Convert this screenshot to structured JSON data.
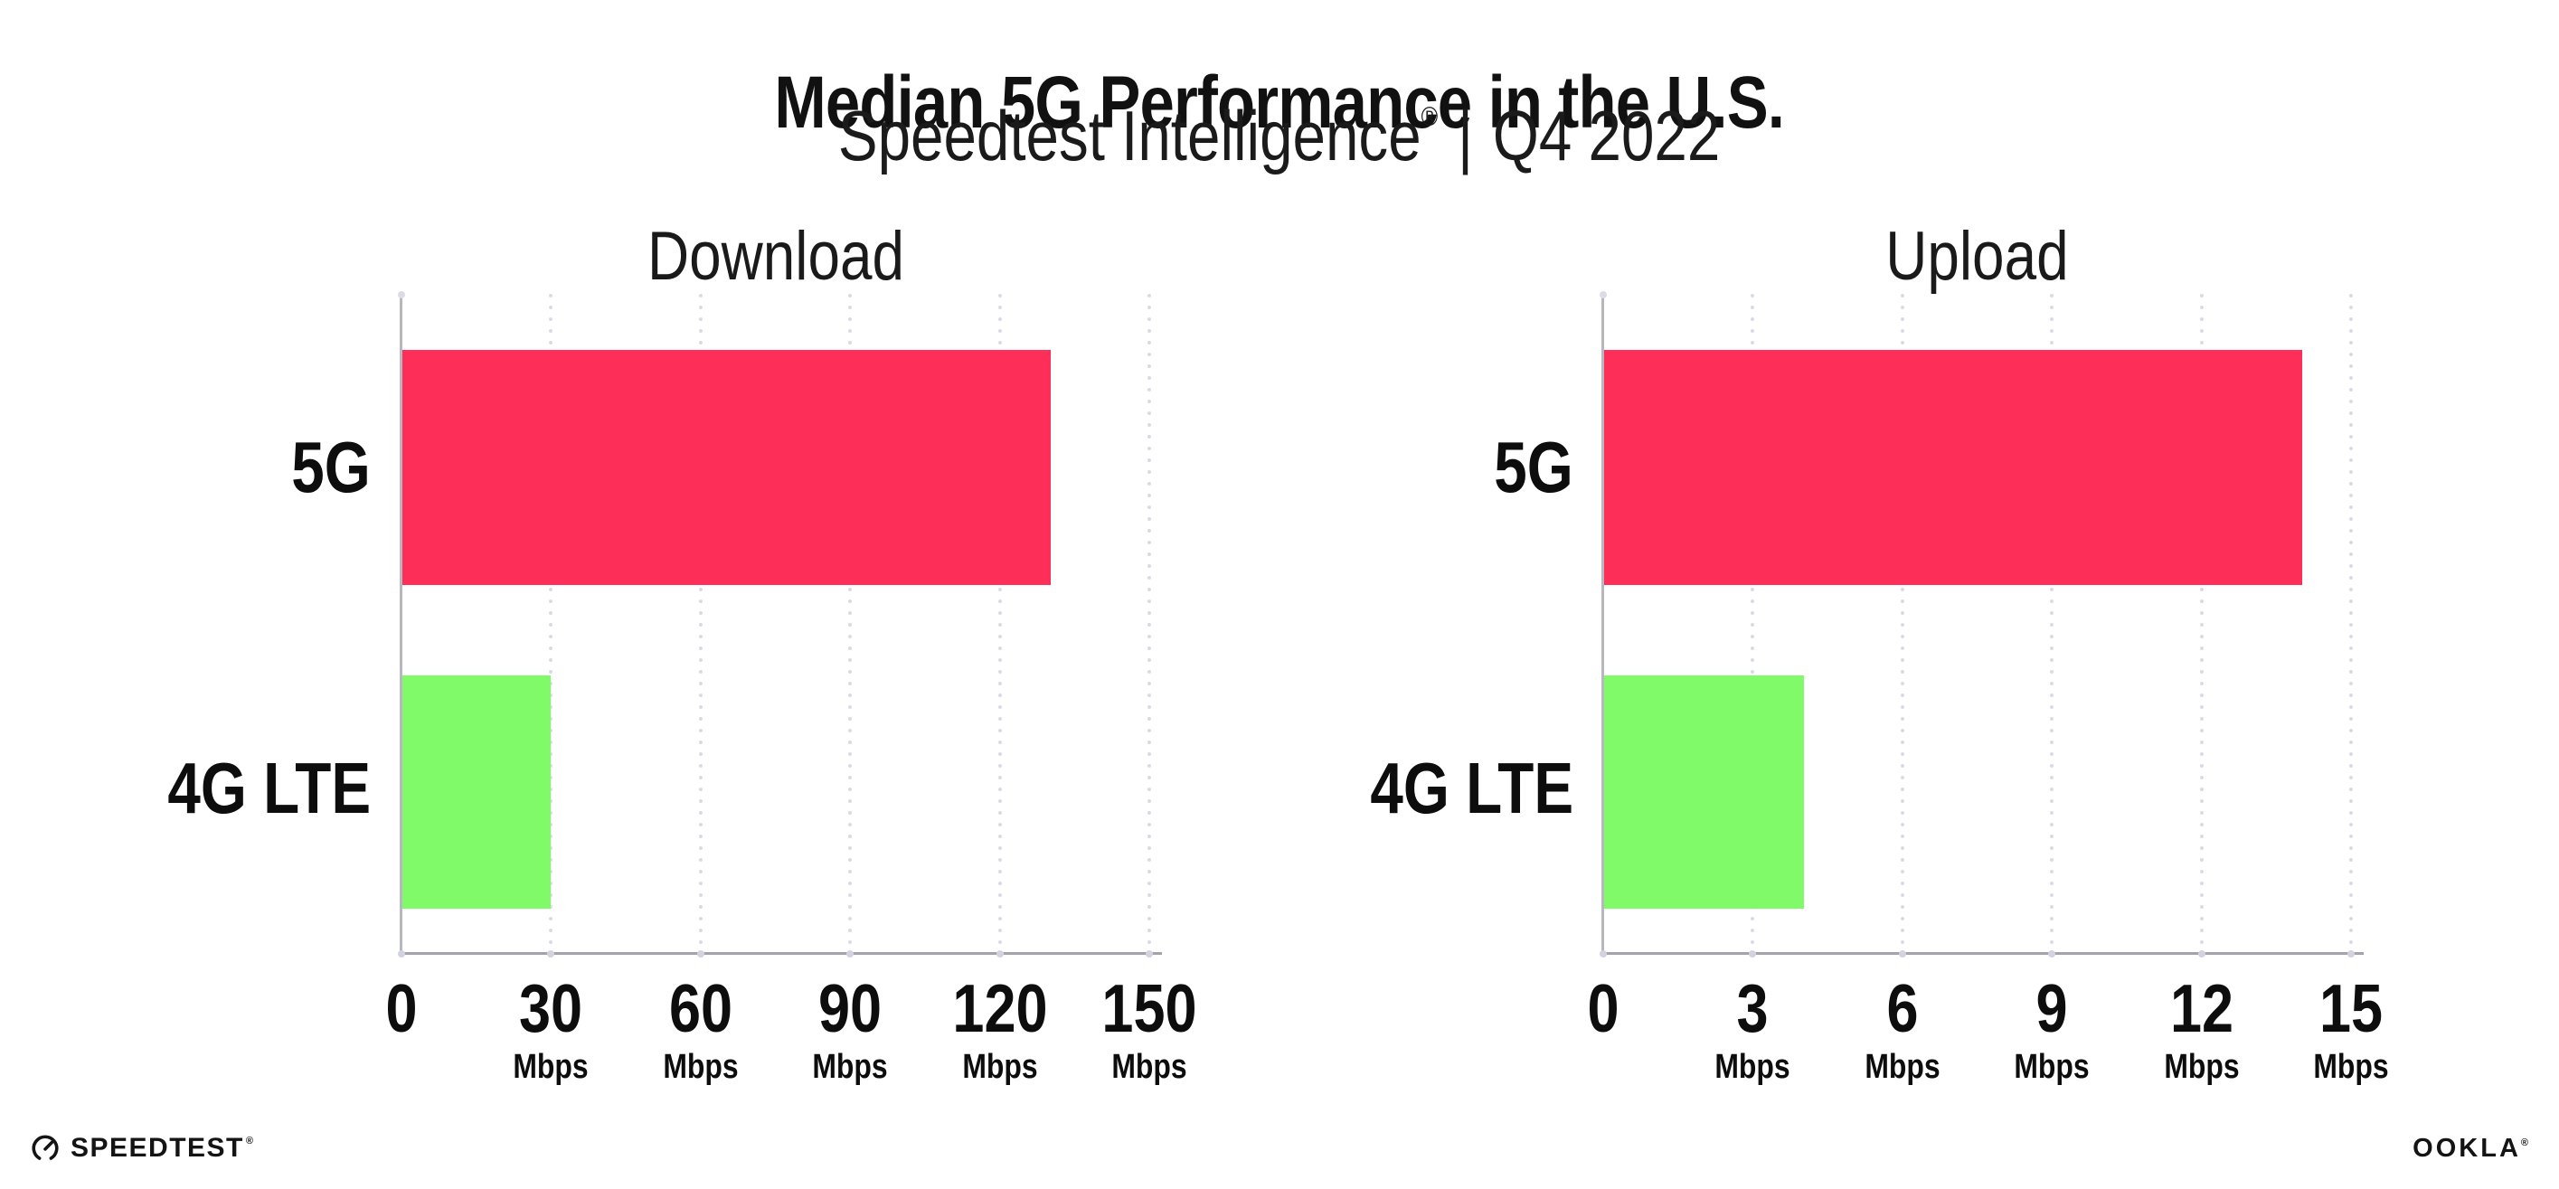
{
  "header": {
    "title": "Median 5G Performance in the U.S.",
    "subtitle_brand": "Speedtest Intelligence",
    "subtitle_reg": "®",
    "subtitle_divider": "|",
    "subtitle_period": "Q4 2022"
  },
  "chart_data": [
    {
      "type": "bar",
      "orientation": "horizontal",
      "title": "Download",
      "categories": [
        "5G",
        "4G LTE"
      ],
      "values": [
        130,
        29.7
      ],
      "unit": "Mbps",
      "xlim": [
        0,
        150
      ],
      "tick_values": [
        0,
        30,
        60,
        90,
        120,
        150
      ],
      "tick_labels": [
        "0",
        "30",
        "60",
        "90",
        "120",
        "150"
      ],
      "grid": "vertical-dotted",
      "legend": "none",
      "bar_colors": [
        "#fd2e57",
        "#80fa68"
      ]
    },
    {
      "type": "bar",
      "orientation": "horizontal",
      "title": "Upload",
      "categories": [
        "5G",
        "4G LTE"
      ],
      "values": [
        14,
        4
      ],
      "unit": "Mbps",
      "xlim": [
        0,
        15
      ],
      "tick_values": [
        0,
        3,
        6,
        9,
        12,
        15
      ],
      "tick_labels": [
        "0",
        "3",
        "6",
        "9",
        "12",
        "15"
      ],
      "grid": "vertical-dotted",
      "legend": "none",
      "bar_colors": [
        "#fd2e57",
        "#80fa68"
      ]
    }
  ],
  "footer": {
    "speedtest_label": "SPEEDTEST",
    "speedtest_reg": "®",
    "ookla_label": "OOKLA",
    "ookla_reg": "®"
  },
  "colors": {
    "bar_5g": "#fd2e57",
    "bar_4g_lte": "#80fa68",
    "x_axis_line": "#a3a3ab",
    "y_axis_line": "#b7b7bf",
    "gridline_dots": "#d9d9e4",
    "text": "#111111",
    "background": "#ffffff"
  }
}
